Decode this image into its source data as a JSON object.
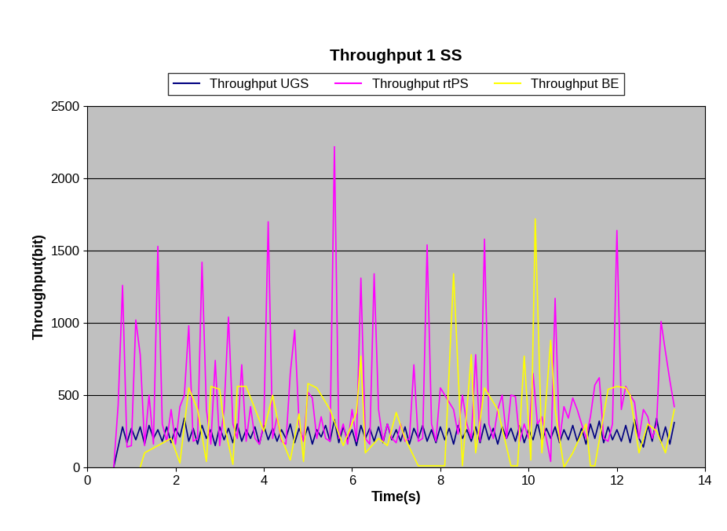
{
  "chart_data": {
    "type": "line",
    "title": "Throughput 1 SS",
    "x_label": "Time(s)",
    "y_label": "Throughput(bit)",
    "xlim": [
      0,
      14
    ],
    "xticks": [
      0,
      2,
      4,
      6,
      8,
      10,
      12,
      14
    ],
    "ylim": [
      0,
      2500
    ],
    "yticks": [
      0,
      500,
      1000,
      1500,
      2000,
      2500
    ],
    "grid": "y",
    "legend": "upper center",
    "x": [
      0.6,
      0.7,
      0.8,
      0.9,
      1.0,
      1.1,
      1.2,
      1.3,
      1.4,
      1.5,
      1.6,
      1.7,
      1.8,
      1.9,
      2.0,
      2.1,
      2.2,
      2.3,
      2.4,
      2.5,
      2.6,
      2.7,
      2.8,
      2.9,
      3.0,
      3.1,
      3.2,
      3.3,
      3.4,
      3.5,
      3.6,
      3.7,
      3.8,
      3.9,
      4.0,
      4.1,
      4.2,
      4.3,
      4.4,
      4.5,
      4.6,
      4.7,
      4.8,
      4.9,
      5.0,
      5.1,
      5.2,
      5.3,
      5.4,
      5.5,
      5.6,
      5.7,
      5.8,
      5.9,
      6.0,
      6.1,
      6.2,
      6.3,
      6.4,
      6.5,
      6.6,
      6.7,
      6.8,
      6.9,
      7.0,
      7.1,
      7.2,
      7.3,
      7.4,
      7.5,
      7.6,
      7.7,
      7.8,
      7.9,
      8.0,
      8.1,
      8.2,
      8.3,
      8.4,
      8.5,
      8.6,
      8.7,
      8.8,
      8.9,
      9.0,
      9.1,
      9.2,
      9.3,
      9.4,
      9.5,
      9.6,
      9.7,
      9.8,
      9.9,
      10.0,
      10.1,
      10.2,
      10.3,
      10.4,
      10.5,
      10.6,
      10.7,
      10.8,
      10.9,
      11.0,
      11.1,
      11.2,
      11.3,
      11.4,
      11.5,
      11.6,
      11.7,
      11.8,
      11.9,
      12.0,
      12.1,
      12.2,
      12.3,
      12.4,
      12.5,
      12.6,
      12.7,
      12.8,
      12.9,
      13.0,
      13.1,
      13.2,
      13.3
    ],
    "series": [
      {
        "name": "Throughput UGS",
        "color": "#000080",
        "values": [
          0,
          140,
          280,
          170,
          270,
          190,
          280,
          160,
          290,
          200,
          260,
          180,
          280,
          170,
          270,
          210,
          340,
          180,
          270,
          160,
          290,
          200,
          260,
          150,
          280,
          190,
          270,
          170,
          300,
          180,
          260,
          200,
          280,
          160,
          290,
          190,
          270,
          180,
          260,
          200,
          300,
          170,
          270,
          190,
          280,
          160,
          260,
          210,
          290,
          180,
          330,
          170,
          280,
          190,
          260,
          150,
          290,
          200,
          270,
          180,
          280,
          170,
          300,
          190,
          260,
          180,
          280,
          160,
          270,
          200,
          290,
          180,
          260,
          170,
          280,
          190,
          270,
          160,
          290,
          200,
          260,
          180,
          280,
          170,
          300,
          190,
          270,
          160,
          280,
          200,
          270,
          180,
          290,
          170,
          260,
          190,
          310,
          180,
          270,
          200,
          280,
          170,
          260,
          190,
          290,
          180,
          270,
          160,
          300,
          200,
          320,
          170,
          280,
          190,
          260,
          180,
          290,
          170,
          330,
          200,
          140,
          290,
          180,
          340,
          170,
          280,
          160,
          310
        ]
      },
      {
        "name": "Throughput rtPS",
        "color": "#ff00ff",
        "values": [
          0,
          430,
          1260,
          140,
          150,
          1020,
          780,
          150,
          500,
          160,
          1530,
          300,
          180,
          400,
          160,
          420,
          500,
          980,
          180,
          200,
          1420,
          400,
          160,
          740,
          150,
          400,
          1040,
          300,
          200,
          710,
          180,
          420,
          200,
          160,
          300,
          1700,
          200,
          350,
          180,
          160,
          650,
          950,
          300,
          180,
          520,
          480,
          200,
          350,
          200,
          180,
          2220,
          200,
          300,
          160,
          400,
          180,
          1310,
          200,
          160,
          1340,
          400,
          180,
          300,
          200,
          170,
          300,
          180,
          200,
          710,
          180,
          200,
          1540,
          300,
          180,
          550,
          500,
          450,
          400,
          230,
          500,
          300,
          200,
          780,
          180,
          1580,
          300,
          200,
          400,
          500,
          200,
          500,
          490,
          180,
          300,
          200,
          650,
          300,
          350,
          200,
          40,
          1170,
          180,
          420,
          340,
          480,
          400,
          300,
          200,
          350,
          570,
          620,
          200,
          180,
          300,
          1640,
          400,
          560,
          500,
          450,
          200,
          400,
          350,
          200,
          300,
          1010,
          800,
          600,
          420
        ]
      },
      {
        "name": "Throughput BE",
        "color": "#ffff00",
        "x": [
          1.2,
          1.3,
          1.6,
          1.9,
          2.1,
          2.3,
          2.5,
          2.7,
          2.8,
          3.0,
          3.1,
          3.3,
          3.4,
          3.6,
          4.0,
          4.2,
          4.4,
          4.6,
          4.8,
          4.9,
          5.0,
          5.2,
          5.5,
          5.8,
          6.1,
          6.2,
          6.3,
          6.6,
          6.8,
          7.0,
          7.2,
          7.5,
          8.1,
          8.3,
          8.5,
          8.7,
          8.8,
          9.0,
          9.3,
          9.6,
          9.75,
          9.9,
          10.05,
          10.15,
          10.3,
          10.4,
          10.5,
          10.6,
          10.8,
          11.0,
          11.3,
          11.4,
          11.5,
          11.8,
          12.0,
          12.2,
          12.3,
          12.5,
          12.7,
          12.9,
          13.1,
          13.3
        ],
        "values": [
          0,
          100,
          150,
          200,
          30,
          550,
          400,
          40,
          560,
          540,
          300,
          20,
          560,
          560,
          250,
          500,
          200,
          50,
          370,
          40,
          580,
          550,
          400,
          150,
          380,
          770,
          100,
          200,
          150,
          380,
          200,
          10,
          10,
          1340,
          10,
          780,
          100,
          550,
          400,
          10,
          10,
          770,
          50,
          1720,
          100,
          490,
          880,
          400,
          0,
          100,
          300,
          10,
          10,
          540,
          560,
          550,
          500,
          100,
          300,
          250,
          100,
          400
        ]
      }
    ]
  }
}
